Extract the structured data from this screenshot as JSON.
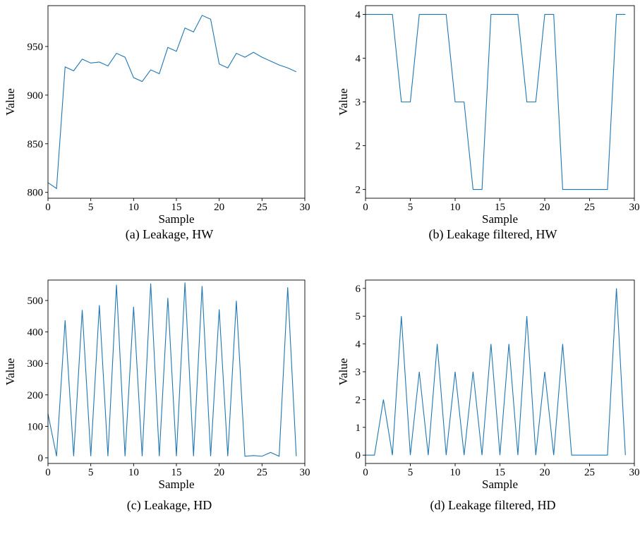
{
  "chart_data": [
    {
      "type": "line",
      "caption": "(a) Leakage, HW",
      "xlabel": "Sample",
      "ylabel": "Value",
      "color": "#1f77b4",
      "x": [
        0,
        1,
        2,
        3,
        4,
        5,
        6,
        7,
        8,
        9,
        10,
        11,
        12,
        13,
        14,
        15,
        16,
        17,
        18,
        19,
        20,
        21,
        22,
        23,
        24,
        25,
        26,
        27,
        28,
        29
      ],
      "values": [
        810,
        804,
        929,
        925,
        937,
        933,
        934,
        930,
        943,
        939,
        918,
        914,
        926,
        922,
        949,
        945,
        969,
        965,
        982,
        978,
        932,
        928,
        943,
        939,
        944,
        939,
        935,
        931,
        928,
        924
      ],
      "xlim": [
        0,
        30
      ],
      "xticks": [
        0,
        5,
        10,
        15,
        20,
        25,
        30
      ],
      "ylim": [
        794,
        992
      ],
      "yticks": [
        800,
        850,
        900,
        950
      ]
    },
    {
      "type": "line",
      "caption": "(b) Leakage filtered, HW",
      "xlabel": "Sample",
      "ylabel": "Value",
      "color": "#1f77b4",
      "x": [
        0,
        1,
        2,
        3,
        4,
        5,
        6,
        7,
        8,
        9,
        10,
        11,
        12,
        13,
        14,
        15,
        16,
        17,
        18,
        19,
        20,
        21,
        22,
        23,
        24,
        25,
        26,
        27,
        28,
        29
      ],
      "values": [
        4,
        4,
        4,
        4,
        3,
        3,
        4,
        4,
        4,
        4,
        3,
        3,
        2,
        2,
        4,
        4,
        4,
        4,
        3,
        3,
        4,
        4,
        2,
        2,
        2,
        2,
        2,
        2,
        4,
        4
      ],
      "xlim": [
        0,
        30
      ],
      "xticks": [
        0,
        5,
        10,
        15,
        20,
        25,
        30
      ],
      "ylim": [
        1.9,
        4.1
      ],
      "yticks": [
        2,
        {
          "value": 2.5,
          "label": "2"
        },
        3,
        {
          "value": 3.5,
          "label": "4"
        },
        4
      ]
    },
    {
      "type": "line",
      "caption": "(c) Leakage, HD",
      "xlabel": "Sample",
      "ylabel": "Value",
      "color": "#1f77b4",
      "x": [
        0,
        1,
        2,
        3,
        4,
        5,
        6,
        7,
        8,
        9,
        10,
        11,
        12,
        13,
        14,
        15,
        16,
        17,
        18,
        19,
        20,
        21,
        22,
        23,
        24,
        25,
        26,
        27,
        28,
        29
      ],
      "values": [
        140,
        5,
        437,
        5,
        470,
        5,
        485,
        5,
        550,
        5,
        480,
        5,
        554,
        5,
        508,
        5,
        557,
        5,
        546,
        5,
        472,
        5,
        499,
        5,
        7,
        5,
        17,
        5,
        542,
        5
      ],
      "xlim": [
        0,
        30
      ],
      "xticks": [
        0,
        5,
        10,
        15,
        20,
        25,
        30
      ],
      "ylim": [
        -18,
        565
      ],
      "yticks": [
        0,
        100,
        200,
        300,
        400,
        500
      ]
    },
    {
      "type": "line",
      "caption": "(d) Leakage filtered, HD",
      "xlabel": "Sample",
      "ylabel": "Value",
      "color": "#1f77b4",
      "x": [
        0,
        1,
        2,
        3,
        4,
        5,
        6,
        7,
        8,
        9,
        10,
        11,
        12,
        13,
        14,
        15,
        16,
        17,
        18,
        19,
        20,
        21,
        22,
        23,
        24,
        25,
        26,
        27,
        28,
        29
      ],
      "values": [
        0,
        0,
        2,
        0,
        5,
        0,
        3,
        0,
        4,
        0,
        3,
        0,
        3,
        0,
        4,
        0,
        4,
        0,
        5,
        0,
        3,
        0,
        4,
        0,
        0,
        0,
        0,
        0,
        6,
        0
      ],
      "xlim": [
        0,
        30
      ],
      "xticks": [
        0,
        5,
        10,
        15,
        20,
        25,
        30
      ],
      "ylim": [
        -0.3,
        6.3
      ],
      "yticks": [
        0,
        1,
        2,
        3,
        4,
        5,
        6
      ]
    }
  ]
}
